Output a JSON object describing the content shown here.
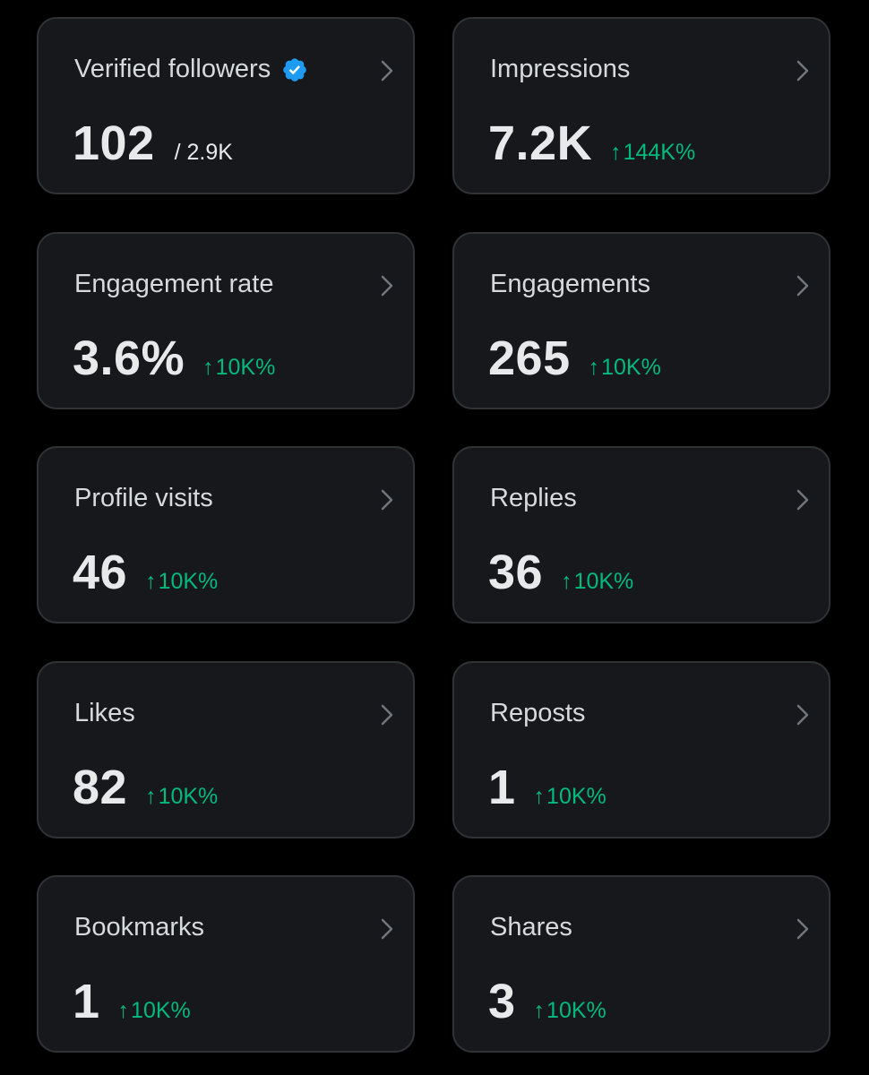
{
  "accent": "#1d9bf0",
  "positive_color": "#00ba7c",
  "chevron_icon": "chevron-right-icon",
  "up_arrow": "↑",
  "cards": [
    {
      "label": "Verified followers",
      "value": "102",
      "sub": "/ 2.9K"
    },
    {
      "label": "Impressions",
      "value": "7.2K",
      "change": "144K%"
    },
    {
      "label": "Engagement rate",
      "value": "3.6%",
      "change": "10K%"
    },
    {
      "label": "Engagements",
      "value": "265",
      "change": "10K%"
    },
    {
      "label": "Profile visits",
      "value": "46",
      "change": "10K%"
    },
    {
      "label": "Replies",
      "value": "36",
      "change": "10K%"
    },
    {
      "label": "Likes",
      "value": "82",
      "change": "10K%"
    },
    {
      "label": "Reposts",
      "value": "1",
      "change": "10K%"
    },
    {
      "label": "Bookmarks",
      "value": "1",
      "change": "10K%"
    },
    {
      "label": "Shares",
      "value": "3",
      "change": "10K%"
    }
  ]
}
